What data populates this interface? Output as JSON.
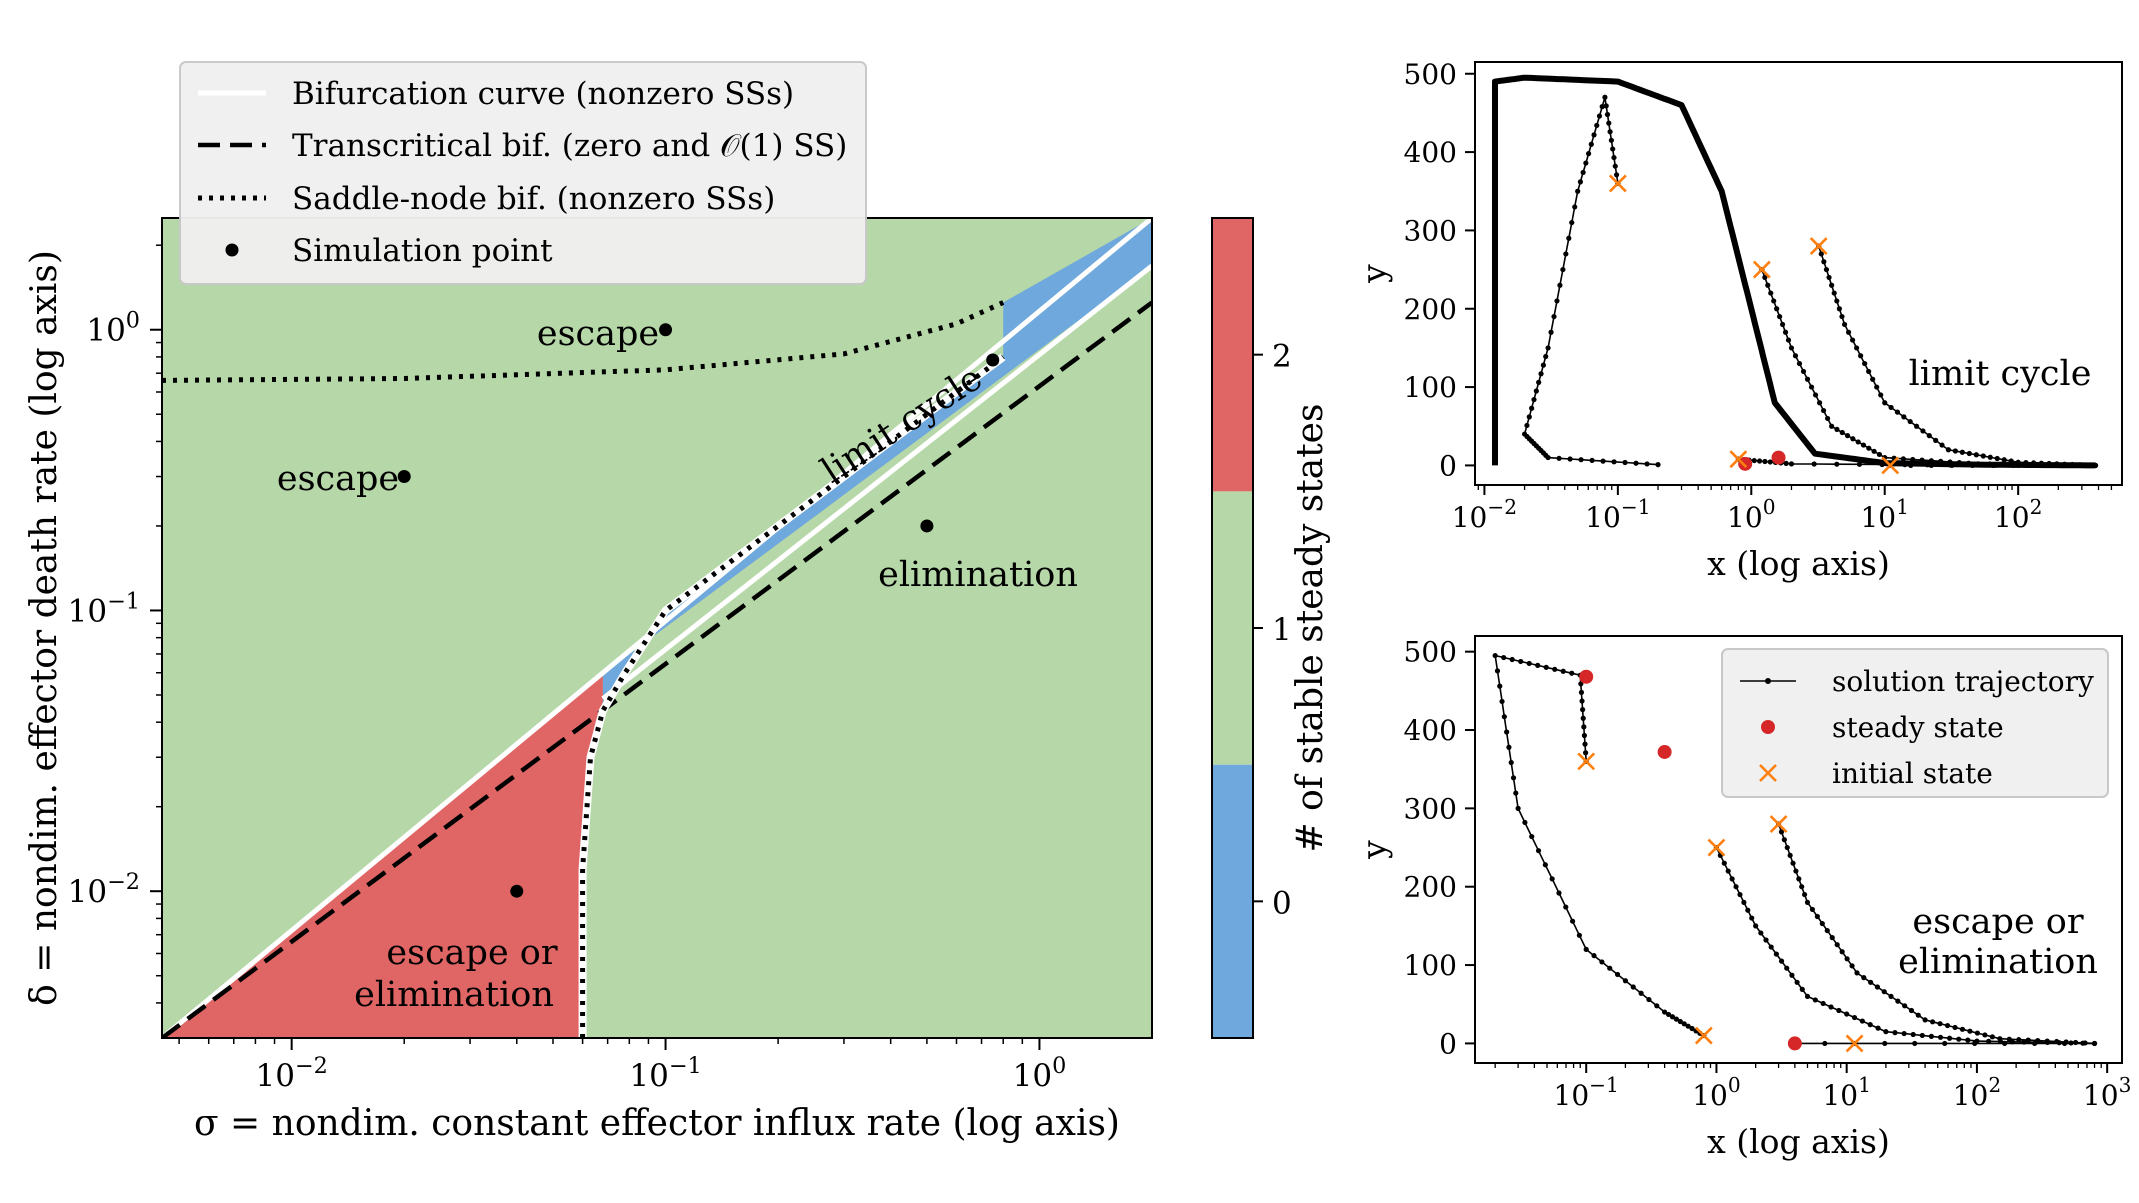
{
  "chart_data": [
    {
      "type": "heatmap",
      "title": "",
      "xlabel": "σ = nondim. constant effector influx rate (log axis)",
      "ylabel": "δ = nondim. effector death rate (log axis)",
      "xscale": "log",
      "yscale": "log",
      "xlim": [
        0.0045,
        2.0
      ],
      "ylim": [
        0.003,
        2.5
      ],
      "xticks": [
        {
          "v": 0.01,
          "b": "10",
          "e": "−2"
        },
        {
          "v": 0.1,
          "b": "10",
          "e": "−1"
        },
        {
          "v": 1,
          "b": "10",
          "e": "0"
        }
      ],
      "yticks": [
        {
          "v": 0.01,
          "b": "10",
          "e": "−2"
        },
        {
          "v": 0.1,
          "b": "10",
          "e": "−1"
        },
        {
          "v": 1,
          "b": "10",
          "e": "0"
        }
      ],
      "region_colors": {
        "zero": "#6fa8dc",
        "one": "#b6d7a8",
        "two": "#e06666"
      },
      "legend": {
        "placement": "top-left",
        "entries": [
          {
            "label": "Bifurcation curve (nonzero SSs)",
            "style": "solid-white"
          },
          {
            "label": "Transcritical bif. (zero and 𝒪(1) SS)",
            "style": "dashed-black"
          },
          {
            "label": "Saddle-node bif. (nonzero SSs)",
            "style": "dotted-black"
          },
          {
            "label": "Simulation point",
            "style": "dot"
          }
        ]
      },
      "colorbar": {
        "label": "# of stable steady states",
        "ticks": [
          "0",
          "1",
          "2"
        ],
        "colors": [
          "#6fa8dc",
          "#b6d7a8",
          "#e06666"
        ]
      },
      "bifurcation_curve": [
        [
          0.0045,
          0.003
        ],
        [
          2.0,
          2.5
        ]
      ],
      "transcritical_curve": [
        [
          0.0045,
          0.003
        ],
        [
          2.0,
          1.25
        ]
      ],
      "saddle_node_upper": [
        [
          0.0045,
          0.66
        ],
        [
          0.02,
          0.67
        ],
        [
          0.1,
          0.72
        ],
        [
          0.3,
          0.82
        ],
        [
          0.6,
          1.05
        ],
        [
          0.8,
          1.25
        ]
      ],
      "saddle_node_lower": [
        [
          0.06,
          0.003
        ],
        [
          0.06,
          0.012
        ],
        [
          0.063,
          0.03
        ],
        [
          0.068,
          0.044
        ],
        [
          0.078,
          0.06
        ],
        [
          0.1,
          0.1
        ],
        [
          0.2,
          0.2
        ],
        [
          0.35,
          0.35
        ],
        [
          0.6,
          0.6
        ],
        [
          0.8,
          0.8
        ]
      ],
      "simulation_points": [
        {
          "x": 0.1,
          "y": 1.0
        },
        {
          "x": 0.02,
          "y": 0.3
        },
        {
          "x": 0.75,
          "y": 0.78
        },
        {
          "x": 0.5,
          "y": 0.2
        },
        {
          "x": 0.04,
          "y": 0.01
        }
      ],
      "region_labels": {
        "escape_top": "escape",
        "escape_left": "escape",
        "limit_cycle": "limit cycle",
        "elimination": "elimination",
        "bistable_1": "escape or",
        "bistable_2": "elimination"
      }
    },
    {
      "type": "line",
      "xlabel": "x (log axis)",
      "ylabel": "y",
      "xscale": "log",
      "xlim": [
        0.0085,
        600
      ],
      "ylim": [
        -25,
        515
      ],
      "xticks": [
        {
          "v": 0.01,
          "b": "10",
          "e": "−2"
        },
        {
          "v": 0.1,
          "b": "10",
          "e": "−1"
        },
        {
          "v": 1,
          "b": "10",
          "e": "0"
        },
        {
          "v": 10,
          "b": "10",
          "e": "1"
        },
        {
          "v": 100,
          "b": "10",
          "e": "2"
        }
      ],
      "yticks": [
        0,
        100,
        200,
        300,
        400,
        500
      ],
      "annotation": "limit cycle",
      "limit_cycle": [
        [
          0.012,
          0
        ],
        [
          0.012,
          490
        ],
        [
          0.02,
          495
        ],
        [
          0.1,
          490
        ],
        [
          0.3,
          460
        ],
        [
          0.6,
          350
        ],
        [
          1.0,
          200
        ],
        [
          1.5,
          80
        ],
        [
          3,
          15
        ],
        [
          10,
          3
        ],
        [
          50,
          1
        ],
        [
          380,
          0
        ]
      ],
      "trajectories": [
        [
          [
            0.1,
            360
          ],
          [
            0.08,
            470
          ],
          [
            0.05,
            350
          ],
          [
            0.03,
            150
          ],
          [
            0.02,
            40
          ],
          [
            0.03,
            10
          ],
          [
            0.2,
            1
          ]
        ],
        [
          [
            1.2,
            250
          ],
          [
            2,
            150
          ],
          [
            4,
            50
          ],
          [
            10,
            10
          ],
          [
            50,
            2
          ],
          [
            380,
            0
          ]
        ],
        [
          [
            3.2,
            280
          ],
          [
            5,
            180
          ],
          [
            10,
            80
          ],
          [
            30,
            20
          ],
          [
            100,
            4
          ],
          [
            380,
            0
          ]
        ],
        [
          [
            0.8,
            8
          ],
          [
            2,
            2
          ],
          [
            100,
            0
          ]
        ],
        [
          [
            11,
            0
          ],
          [
            380,
            0
          ]
        ]
      ],
      "steady_states": [
        [
          0.9,
          2
        ],
        [
          1.6,
          10
        ]
      ],
      "initial_states": [
        [
          0.1,
          360
        ],
        [
          1.2,
          250
        ],
        [
          3.2,
          280
        ],
        [
          0.8,
          8
        ],
        [
          11,
          0
        ]
      ]
    },
    {
      "type": "line",
      "xlabel": "x (log axis)",
      "ylabel": "y",
      "xscale": "log",
      "xlim": [
        0.014,
        1300
      ],
      "ylim": [
        -25,
        520
      ],
      "xticks": [
        {
          "v": 0.1,
          "b": "10",
          "e": "−1"
        },
        {
          "v": 1,
          "b": "10",
          "e": "0"
        },
        {
          "v": 10,
          "b": "10",
          "e": "1"
        },
        {
          "v": 100,
          "b": "10",
          "e": "2"
        },
        {
          "v": 1000,
          "b": "10",
          "e": "3"
        }
      ],
      "yticks": [
        0,
        100,
        200,
        300,
        400,
        500
      ],
      "annotation_1": "escape or",
      "annotation_2": "elimination",
      "legend": {
        "placement": "top-right",
        "entries": [
          {
            "label": "solution trajectory",
            "style": "line-dot"
          },
          {
            "label": "steady state",
            "style": "red-dot"
          },
          {
            "label": "initial state",
            "style": "orange-x"
          }
        ]
      },
      "trajectories": [
        [
          [
            0.1,
            360
          ],
          [
            0.09,
            470
          ],
          [
            0.02,
            495
          ],
          [
            0.03,
            300
          ],
          [
            0.1,
            120
          ],
          [
            0.4,
            40
          ],
          [
            0.8,
            10
          ]
        ],
        [
          [
            1.0,
            250
          ],
          [
            2,
            150
          ],
          [
            5,
            60
          ],
          [
            20,
            15
          ],
          [
            100,
            3
          ],
          [
            800,
            0
          ]
        ],
        [
          [
            3,
            280
          ],
          [
            5,
            180
          ],
          [
            12,
            90
          ],
          [
            40,
            30
          ],
          [
            150,
            6
          ],
          [
            800,
            0
          ]
        ],
        [
          [
            4,
            0
          ],
          [
            800,
            0
          ]
        ]
      ],
      "steady_states": [
        [
          0.1,
          468
        ],
        [
          0.4,
          372
        ],
        [
          4,
          0
        ]
      ],
      "initial_states": [
        [
          0.1,
          360
        ],
        [
          1.0,
          250
        ],
        [
          3,
          280
        ],
        [
          0.8,
          10
        ],
        [
          11.5,
          0
        ]
      ]
    }
  ]
}
